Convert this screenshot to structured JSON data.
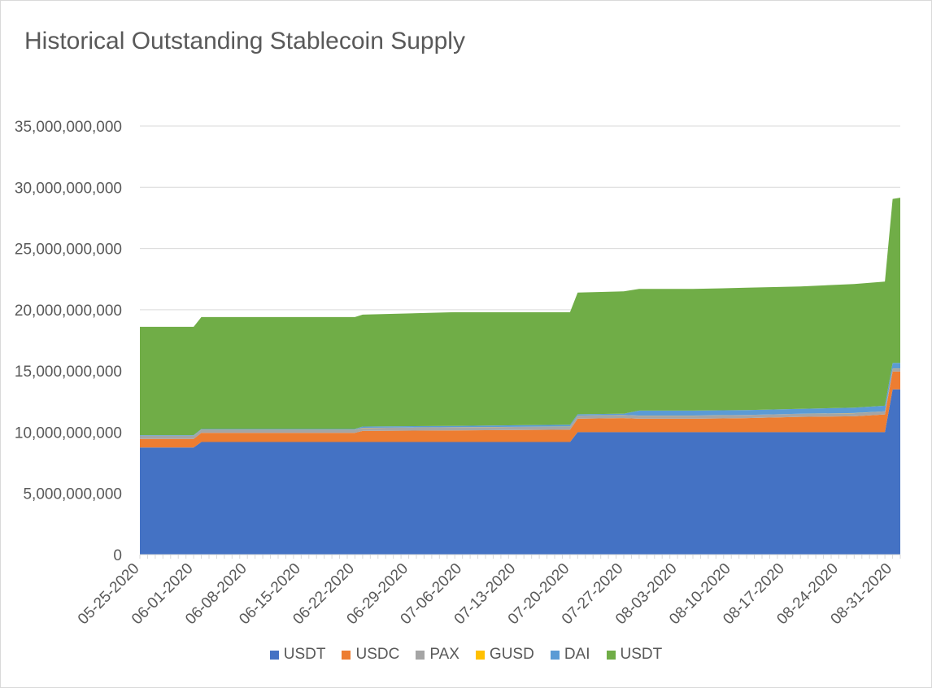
{
  "chart_data": {
    "type": "area",
    "stacked": true,
    "title": "Historical Outstanding Stablecoin Supply",
    "xlabel": "",
    "ylabel": "",
    "ylim": [
      0,
      35000000000
    ],
    "y_ticks": [
      "0",
      "5,000,000,000",
      "10,000,000,000",
      "15,000,000,000",
      "20,000,000,000",
      "25,000,000,000",
      "30,000,000,000",
      "35,000,000,000"
    ],
    "grid": "horizontal",
    "legend_position": "bottom",
    "x_start": "05-25-2020",
    "x_end": "09-01-2020",
    "x_tick_labels": [
      "05-25-2020",
      "06-01-2020",
      "06-08-2020",
      "06-15-2020",
      "06-22-2020",
      "06-29-2020",
      "07-06-2020",
      "07-13-2020",
      "07-20-2020",
      "07-27-2020",
      "08-03-2020",
      "08-10-2020",
      "08-17-2020",
      "08-24-2020",
      "08-31-2020"
    ],
    "x": [
      "05-25-2020",
      "06-01-2020",
      "06-02-2020",
      "06-22-2020",
      "06-23-2020",
      "07-05-2020",
      "07-20-2020",
      "07-21-2020",
      "07-27-2020",
      "07-29-2020",
      "08-05-2020",
      "08-12-2020",
      "08-19-2020",
      "08-26-2020",
      "08-30-2020",
      "08-31-2020",
      "09-01-2020"
    ],
    "series": [
      {
        "name": "USDT",
        "color": "#4472c4",
        "values": [
          8750000000,
          8750000000,
          9200000000,
          9200000000,
          9200000000,
          9200000000,
          9200000000,
          10000000000,
          10000000000,
          10000000000,
          10000000000,
          10000000000,
          10000000000,
          10000000000,
          10000000000,
          13500000000,
          13500000000
        ]
      },
      {
        "name": "USDC",
        "color": "#ed7d31",
        "values": [
          700000000,
          700000000,
          750000000,
          750000000,
          900000000,
          950000000,
          1000000000,
          1100000000,
          1150000000,
          1100000000,
          1100000000,
          1150000000,
          1250000000,
          1300000000,
          1450000000,
          1450000000,
          1450000000
        ]
      },
      {
        "name": "PAX",
        "color": "#a5a5a5",
        "values": [
          250000000,
          250000000,
          250000000,
          250000000,
          250000000,
          250000000,
          250000000,
          250000000,
          250000000,
          250000000,
          250000000,
          250000000,
          250000000,
          250000000,
          250000000,
          250000000,
          250000000
        ]
      },
      {
        "name": "GUSD",
        "color": "#ffc000",
        "values": [
          10000000,
          10000000,
          10000000,
          10000000,
          10000000,
          10000000,
          10000000,
          10000000,
          10000000,
          10000000,
          10000000,
          10000000,
          10000000,
          10000000,
          10000000,
          10000000,
          10000000
        ]
      },
      {
        "name": "DAI",
        "color": "#5b9bd5",
        "values": [
          50000000,
          50000000,
          50000000,
          50000000,
          100000000,
          100000000,
          150000000,
          100000000,
          100000000,
          400000000,
          400000000,
          400000000,
          400000000,
          450000000,
          450000000,
          450000000,
          450000000
        ]
      },
      {
        "name": "USDT",
        "color": "#70ad47",
        "values": [
          8840000000,
          8840000000,
          9140000000,
          9140000000,
          9140000000,
          9290000000,
          9190000000,
          9940000000,
          9990000000,
          9940000000,
          9940000000,
          9990000000,
          9990000000,
          10090000000,
          10140000000,
          13390000000,
          13490000000
        ]
      }
    ]
  }
}
